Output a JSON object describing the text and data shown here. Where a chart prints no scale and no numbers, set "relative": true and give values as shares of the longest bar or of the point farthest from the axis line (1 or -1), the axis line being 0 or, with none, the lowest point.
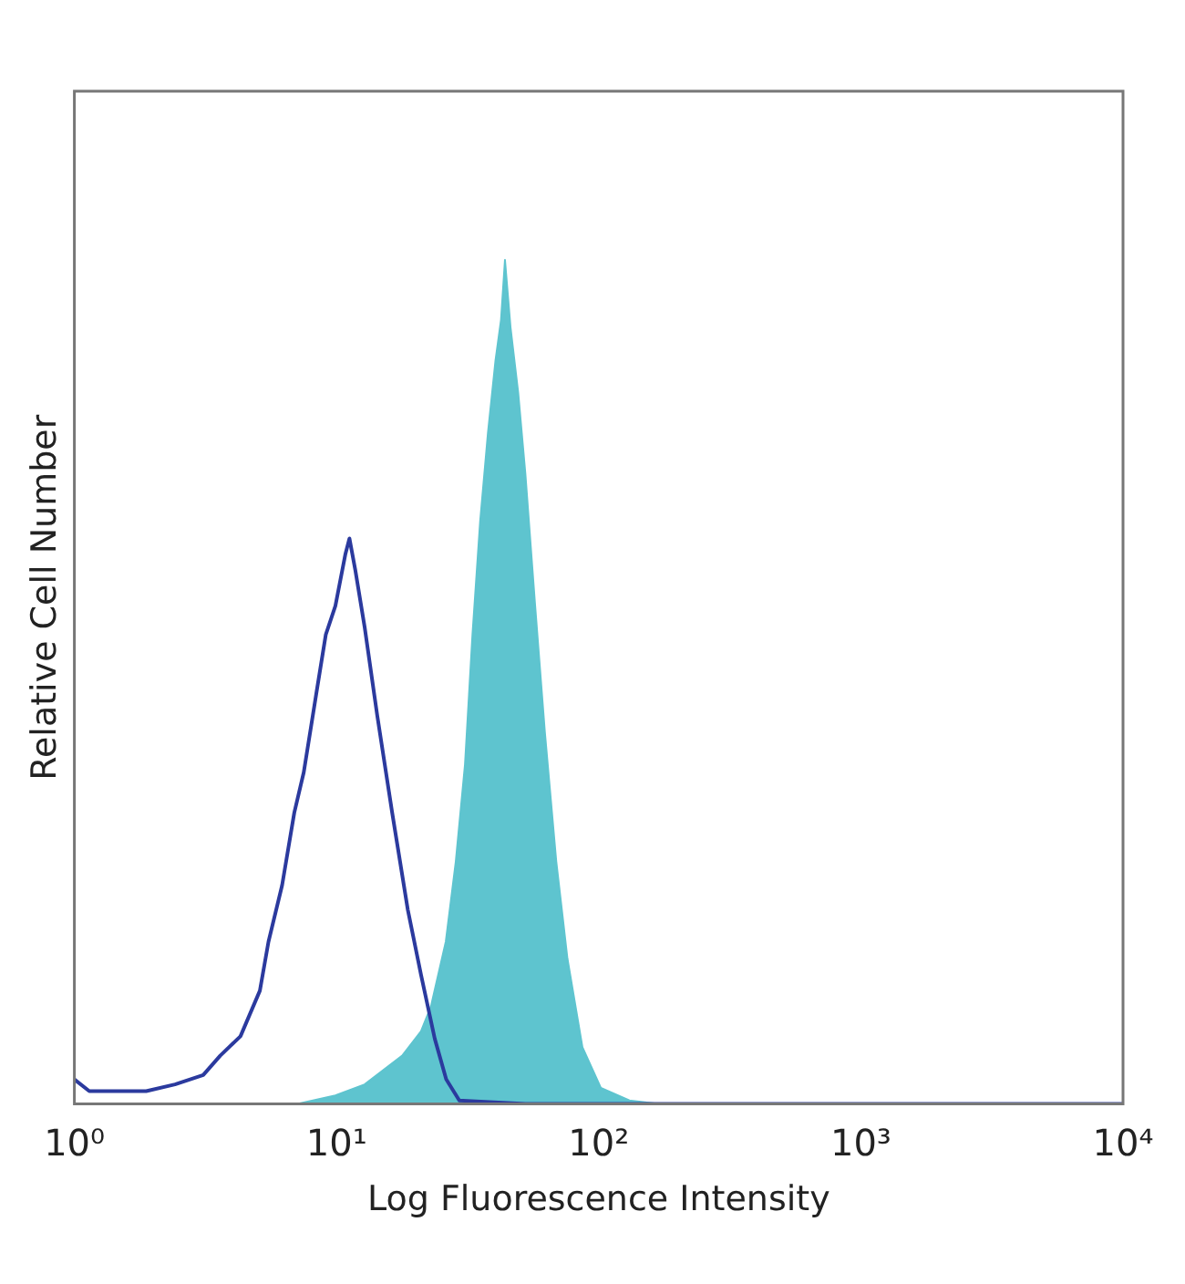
{
  "chart_data": {
    "type": "line",
    "xlabel": "Log Fluorescence Intensity",
    "ylabel": "Relative Cell Number",
    "relative": true,
    "log": "x",
    "grid": false,
    "legend": false,
    "marker": "none",
    "xlim": [
      1,
      10000
    ],
    "xticks": [
      {
        "value": 1,
        "label": "10⁰"
      },
      {
        "value": 10,
        "label": "10¹"
      },
      {
        "value": 100,
        "label": "10²"
      },
      {
        "value": 1000,
        "label": "10³"
      },
      {
        "value": 10000,
        "label": "10⁴"
      }
    ],
    "series": [
      {
        "type": "area",
        "color": "#5ec4cf",
        "x": [
          1,
          7.1,
          9.9,
          12.8,
          17.8,
          21.0,
          22.9,
          26.1,
          28.5,
          30.9,
          33.0,
          35.3,
          37.8,
          40.4,
          42.4,
          43.9,
          46.1,
          49.3,
          52.5,
          57.1,
          62.3,
          68.9,
          76.0,
          86.7,
          101.9,
          131,
          169,
          10000
        ],
        "values": [
          0,
          0,
          0.01,
          0.023,
          0.057,
          0.086,
          0.115,
          0.192,
          0.287,
          0.402,
          0.556,
          0.69,
          0.795,
          0.881,
          0.929,
          1.0,
          0.92,
          0.843,
          0.747,
          0.594,
          0.441,
          0.287,
          0.172,
          0.067,
          0.019,
          0.004,
          0,
          0
        ]
      },
      {
        "type": "line",
        "color": "#2b3a9e",
        "x": [
          1,
          1.14,
          1.88,
          2.42,
          3.1,
          3.6,
          4.3,
          5.1,
          5.5,
          6.2,
          6.9,
          7.5,
          8.4,
          9.1,
          9.9,
          10.8,
          11.2,
          11.8,
          12.8,
          14.3,
          16.3,
          18.7,
          21.0,
          23.7,
          26.2,
          29.4,
          52.5,
          10000
        ],
        "values": [
          0.029,
          0.015,
          0.015,
          0.023,
          0.034,
          0.057,
          0.08,
          0.134,
          0.192,
          0.259,
          0.345,
          0.393,
          0.489,
          0.556,
          0.59,
          0.651,
          0.67,
          0.632,
          0.565,
          0.46,
          0.345,
          0.23,
          0.153,
          0.077,
          0.029,
          0.004,
          0,
          0
        ]
      }
    ]
  }
}
